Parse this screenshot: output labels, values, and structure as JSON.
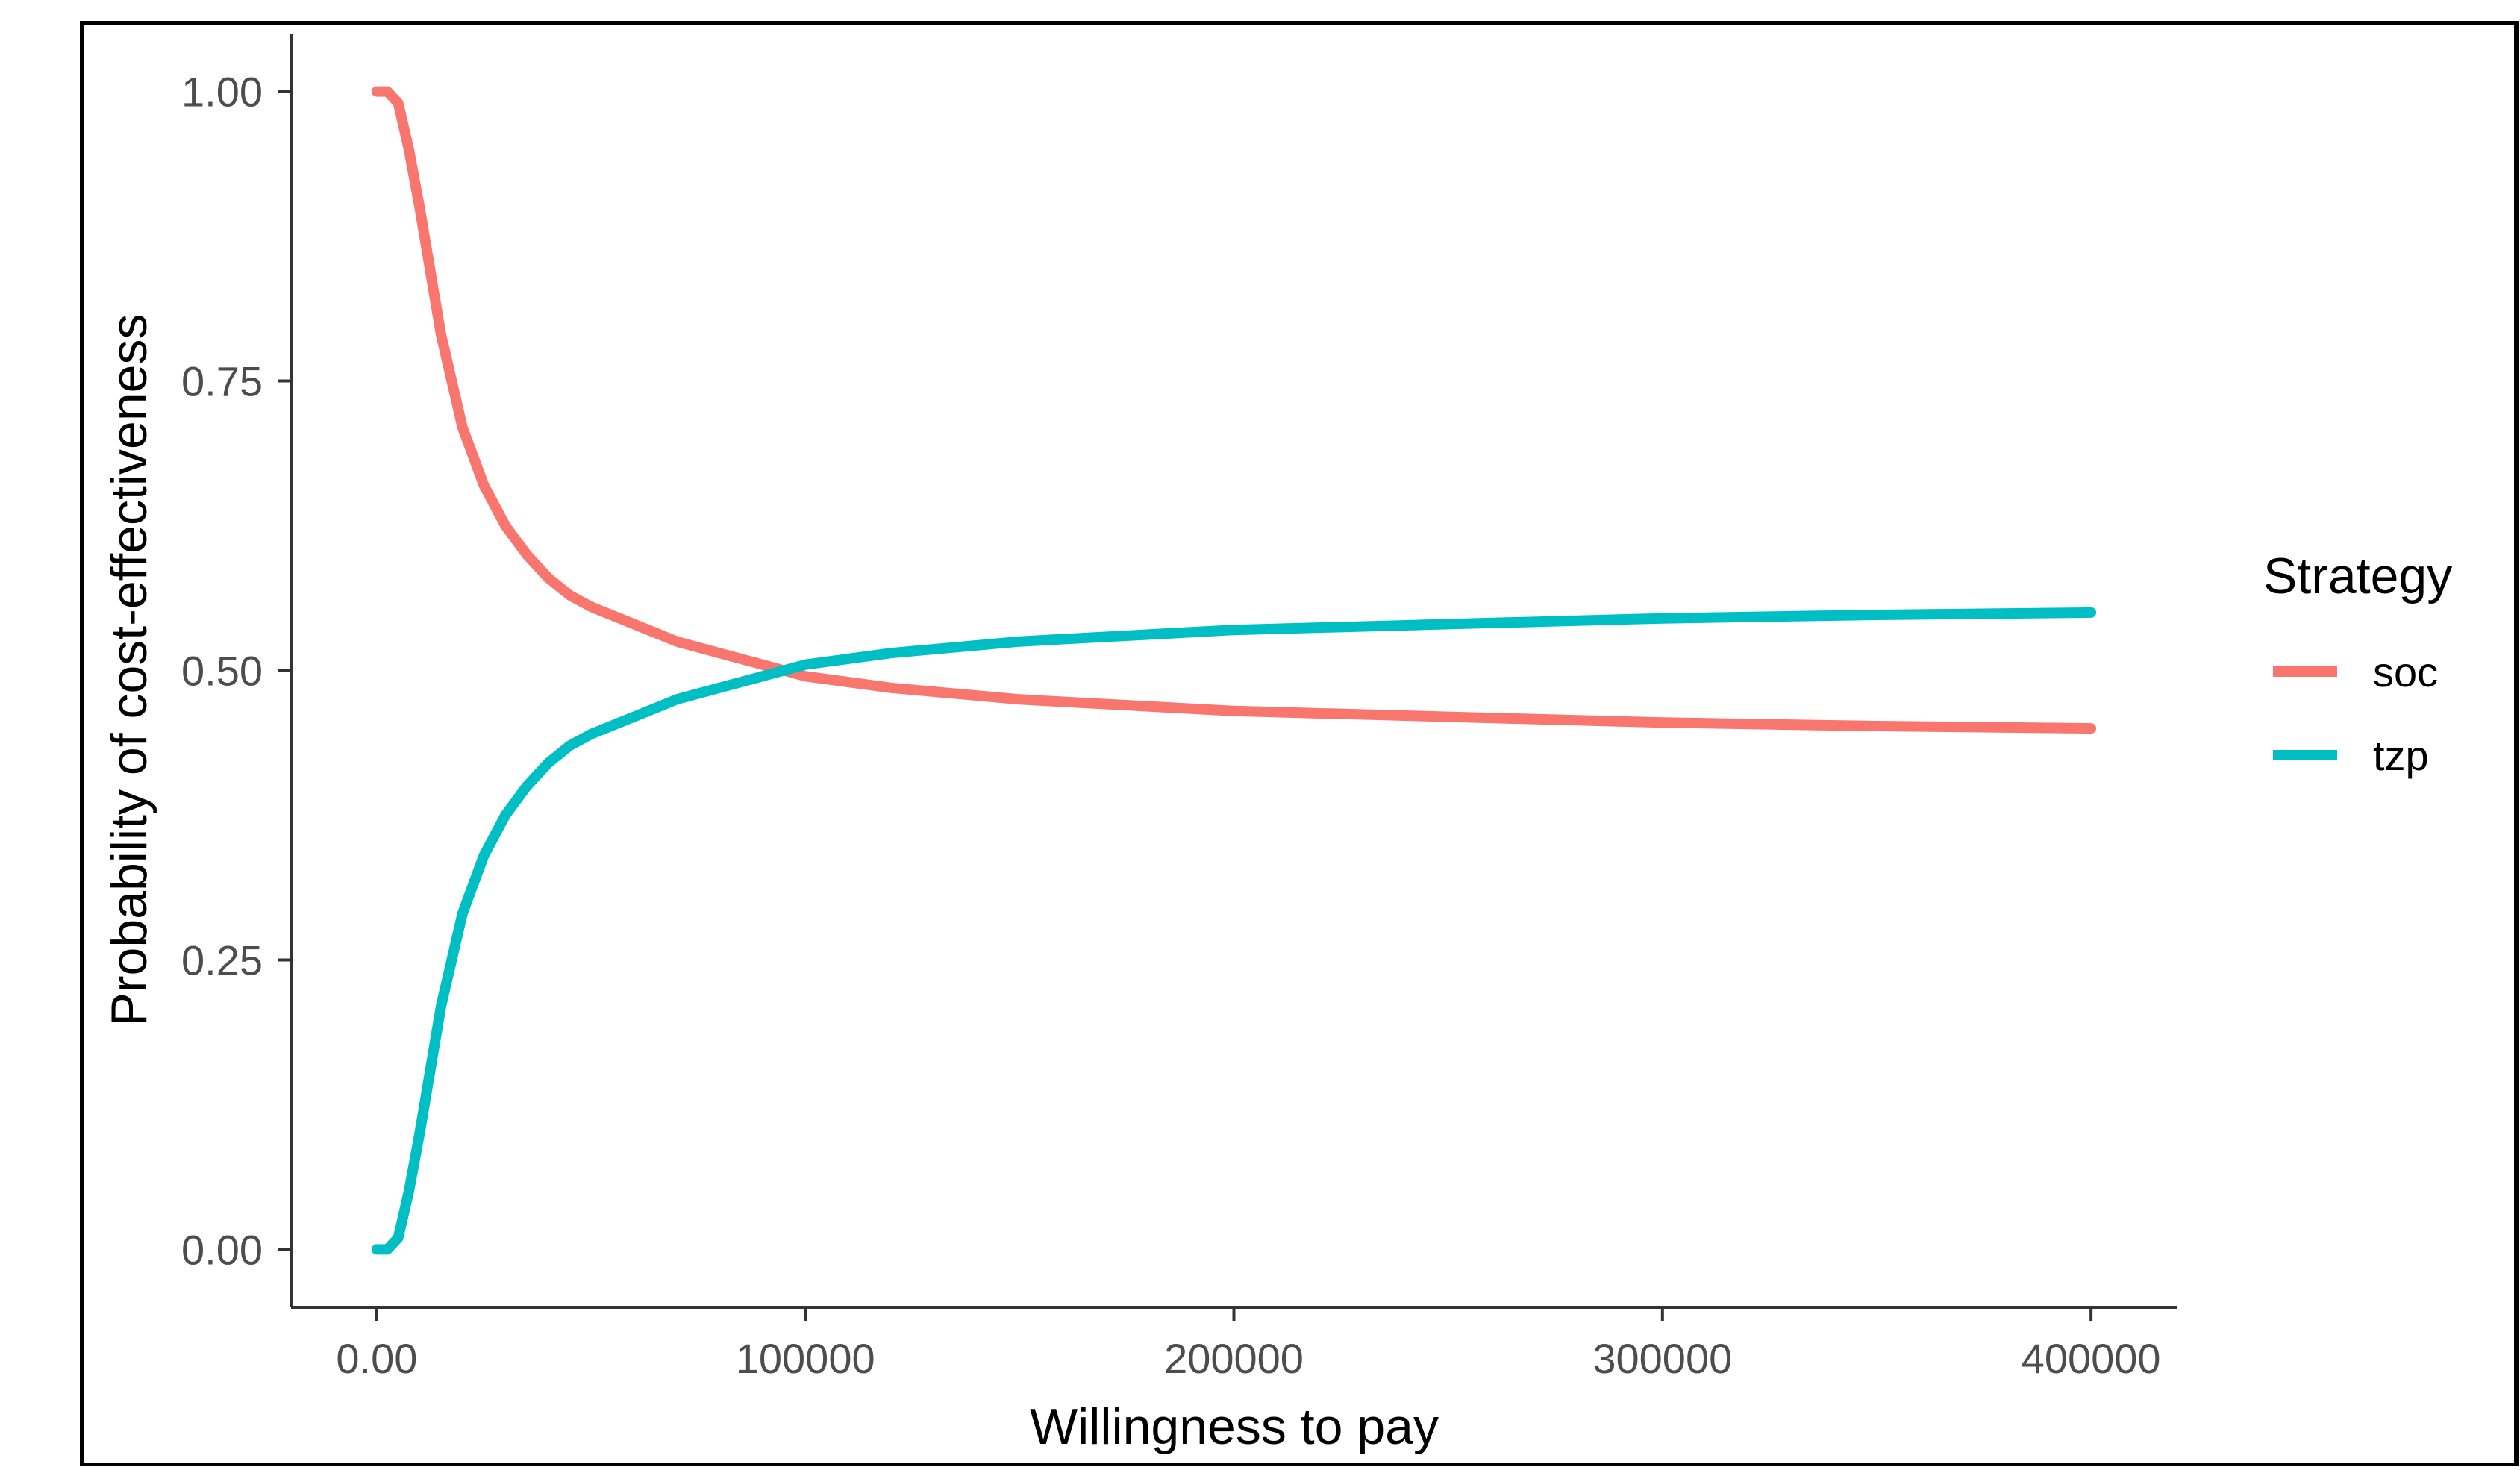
{
  "chart_data": {
    "type": "line",
    "xlabel": "Willingness to pay",
    "ylabel": "Probability of cost-effectiveness",
    "xlim": [
      -20000,
      420000
    ],
    "ylim": [
      -0.05,
      1.05
    ],
    "x_ticks": [
      {
        "value": 0,
        "label": "0.00"
      },
      {
        "value": 100000,
        "label": "100000"
      },
      {
        "value": 200000,
        "label": "200000"
      },
      {
        "value": 300000,
        "label": "300000"
      },
      {
        "value": 400000,
        "label": "400000"
      }
    ],
    "y_ticks": [
      {
        "value": 0,
        "label": "0.00"
      },
      {
        "value": 0.25,
        "label": "0.25"
      },
      {
        "value": 0.5,
        "label": "0.50"
      },
      {
        "value": 0.75,
        "label": "0.75"
      },
      {
        "value": 1,
        "label": "1.00"
      }
    ],
    "grid": false,
    "legend": {
      "title": "Strategy",
      "position": "right"
    },
    "x": [
      0,
      2500,
      5000,
      7500,
      10000,
      15000,
      20000,
      25000,
      30000,
      35000,
      40000,
      45000,
      50000,
      60000,
      70000,
      80000,
      90000,
      100000,
      120000,
      150000,
      200000,
      250000,
      300000,
      350000,
      400000
    ],
    "series": [
      {
        "name": "soc",
        "color": "#F8766D",
        "values": [
          1.0,
          1.0,
          0.99,
          0.95,
          0.9,
          0.79,
          0.71,
          0.66,
          0.625,
          0.6,
          0.58,
          0.565,
          0.555,
          0.54,
          0.525,
          0.515,
          0.505,
          0.495,
          0.485,
          0.475,
          0.465,
          0.46,
          0.455,
          0.452,
          0.45
        ]
      },
      {
        "name": "tzp",
        "color": "#00BFC4",
        "values": [
          0.0,
          0.0,
          0.01,
          0.05,
          0.1,
          0.21,
          0.29,
          0.34,
          0.375,
          0.4,
          0.42,
          0.435,
          0.445,
          0.46,
          0.475,
          0.485,
          0.495,
          0.505,
          0.515,
          0.525,
          0.535,
          0.54,
          0.545,
          0.548,
          0.55
        ]
      }
    ]
  }
}
